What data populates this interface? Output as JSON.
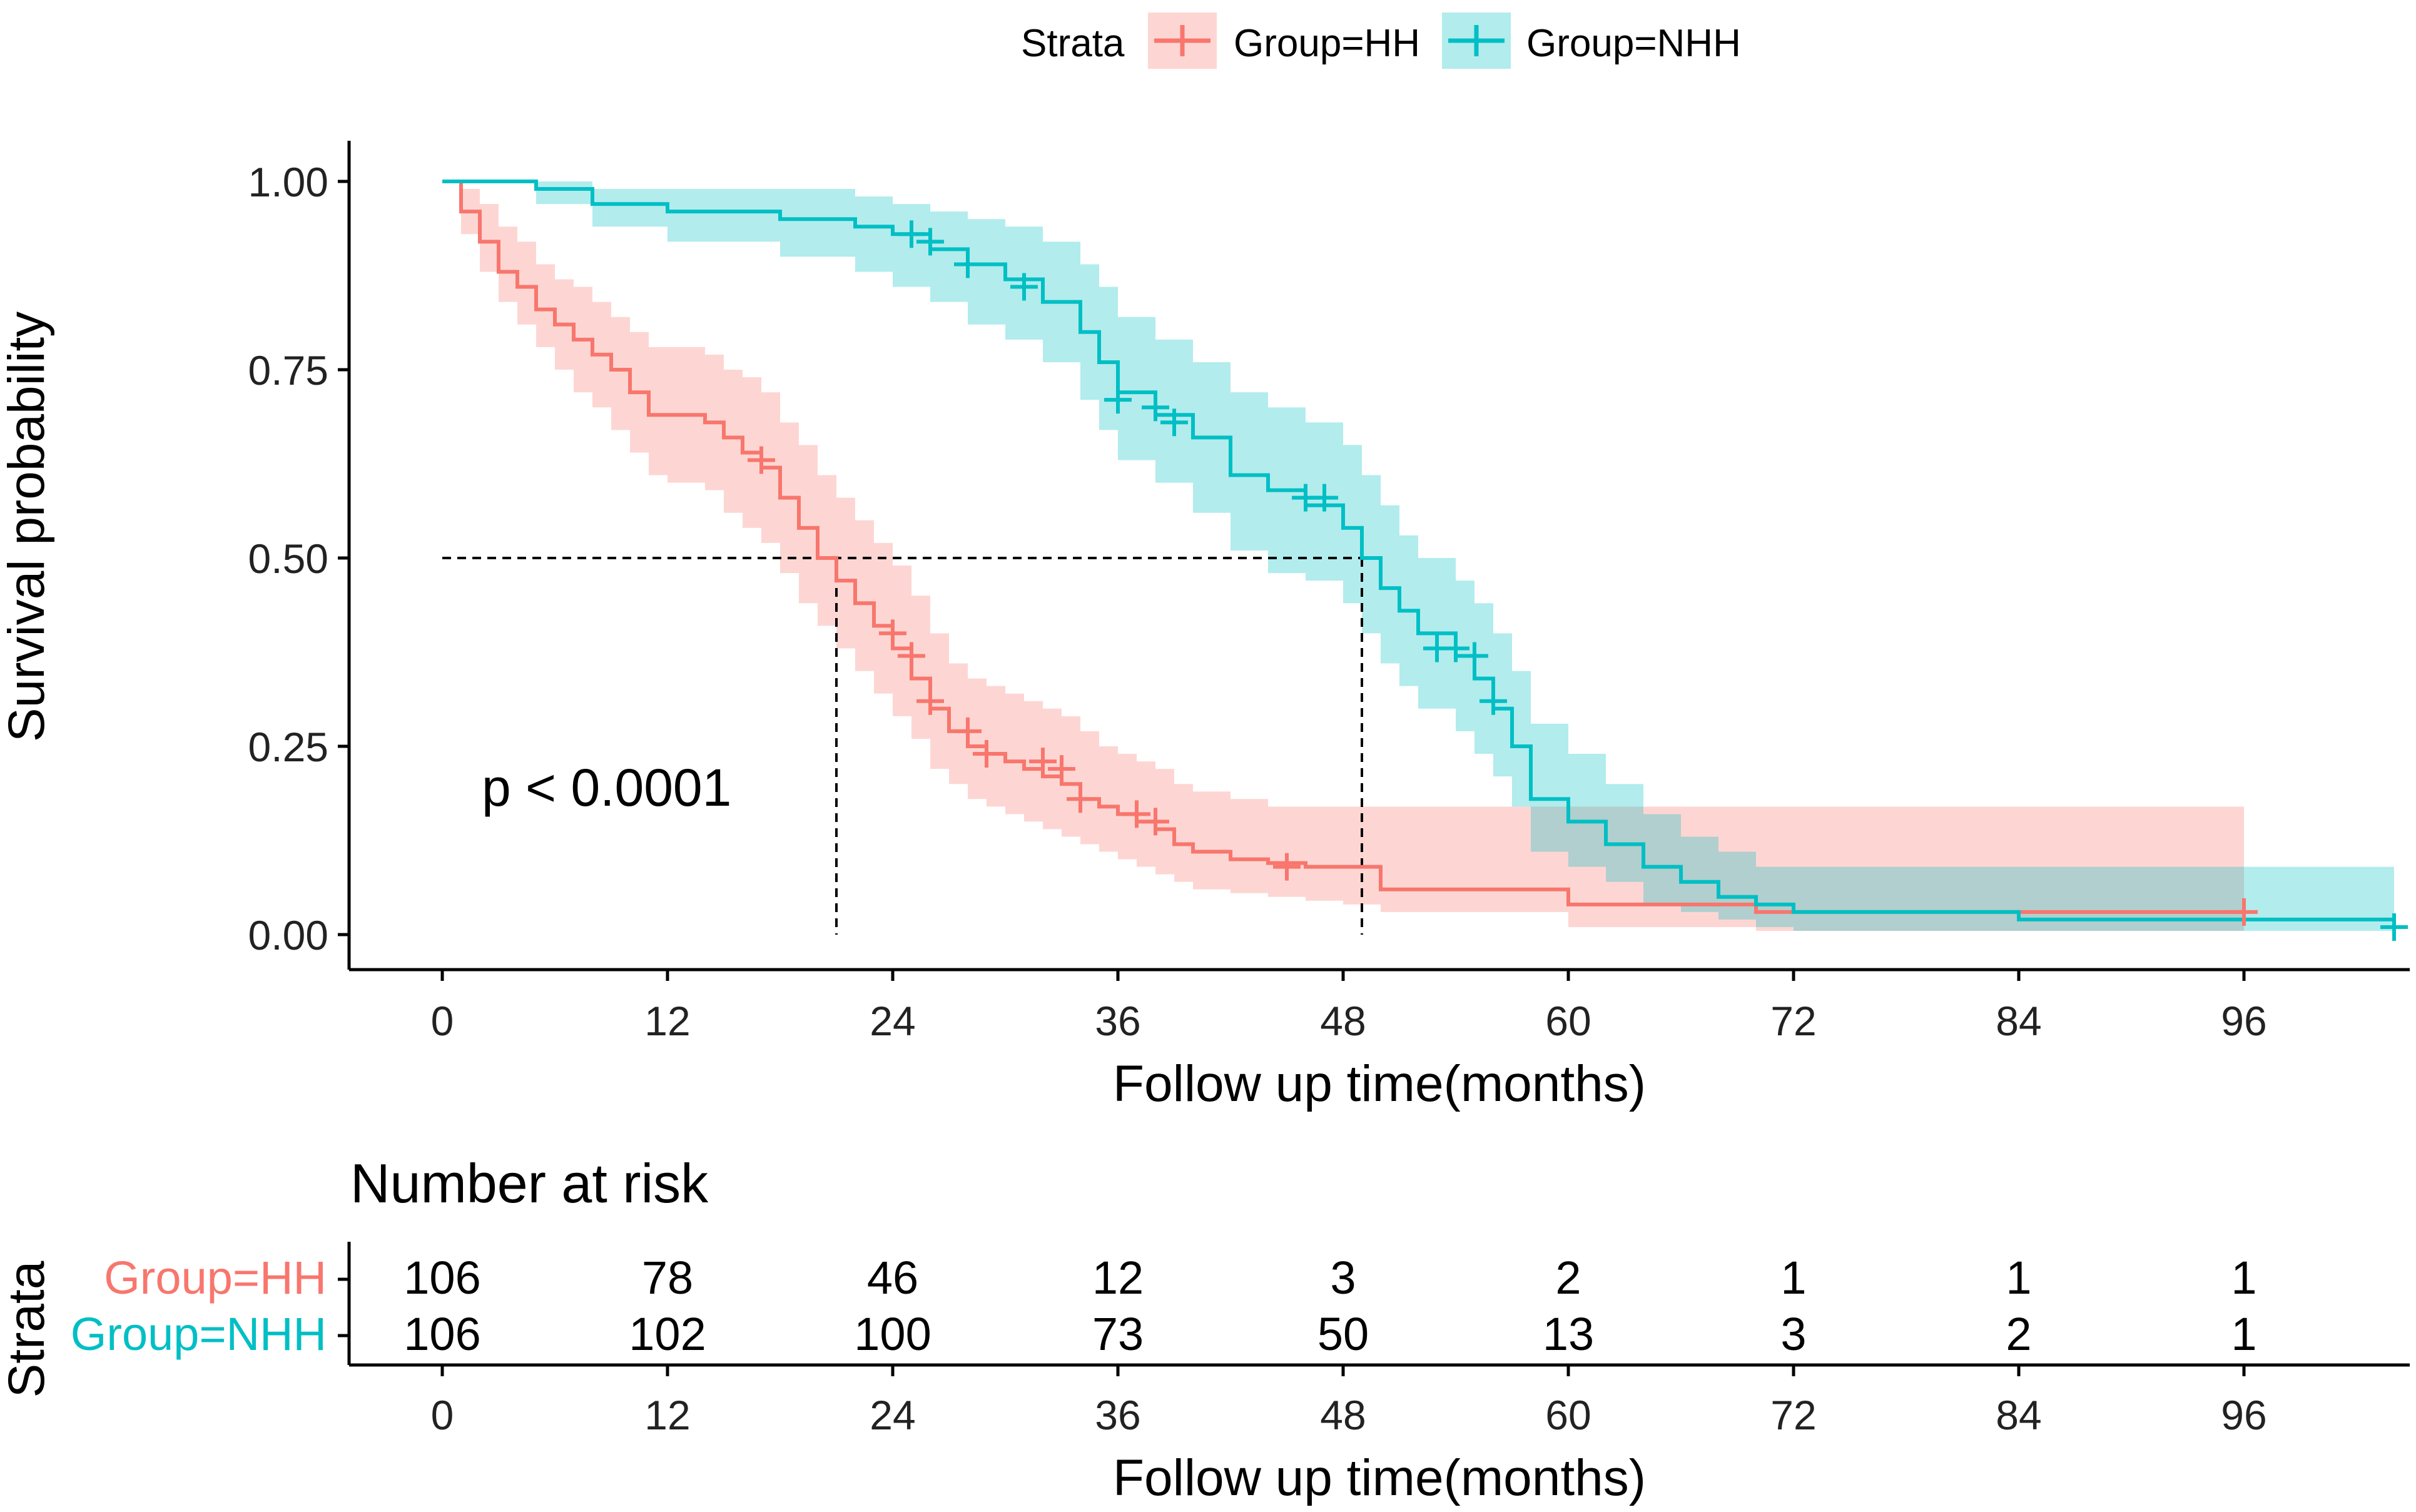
{
  "legend": {
    "title": "Strata",
    "items": [
      {
        "label": "Group=HH",
        "color": "#F8766D"
      },
      {
        "label": "Group=NHH",
        "color": "#00BFC4"
      }
    ]
  },
  "p_value": "p < 0.0001",
  "risk_table": {
    "title": "Number at risk",
    "ylabel": "Strata",
    "xlabel": "Follow up time(months)",
    "times": [
      0,
      12,
      24,
      36,
      48,
      60,
      72,
      84,
      96
    ],
    "rows": [
      {
        "label": "Group=HH",
        "color": "#F8766D",
        "values": [
          106,
          78,
          46,
          12,
          3,
          2,
          1,
          1,
          1
        ]
      },
      {
        "label": "Group=NHH",
        "color": "#00BFC4",
        "values": [
          106,
          102,
          100,
          73,
          50,
          13,
          3,
          2,
          1
        ]
      }
    ]
  },
  "chart_data": {
    "type": "line",
    "subtype": "kaplan-meier step",
    "xlabel": "Follow up time(months)",
    "ylabel": "Survival probability",
    "xlim": [
      0,
      104
    ],
    "ylim": [
      0,
      1
    ],
    "xticks": [
      0,
      12,
      24,
      36,
      48,
      60,
      72,
      84,
      96
    ],
    "yticks": [
      0,
      0.25,
      0.5,
      0.75,
      1
    ],
    "ytick_labels": [
      "0.00",
      "0.25",
      "0.50",
      "0.75",
      "1.00"
    ],
    "median_line": {
      "y": 0.5,
      "medians": [
        21,
        49
      ]
    },
    "series": [
      {
        "name": "Group=HH",
        "color": "#F8766D",
        "x": [
          0,
          1,
          2,
          3,
          4,
          5,
          6,
          7,
          8,
          9,
          10,
          11,
          12,
          13,
          14,
          15,
          16,
          17,
          18,
          19,
          20,
          21,
          22,
          23,
          24,
          25,
          26,
          27,
          28,
          29,
          30,
          31,
          32,
          33,
          34,
          35,
          36,
          37,
          38,
          39,
          40,
          42,
          44,
          46,
          48,
          50,
          55,
          60,
          70,
          80,
          96
        ],
        "y": [
          1.0,
          0.96,
          0.92,
          0.88,
          0.86,
          0.83,
          0.81,
          0.79,
          0.77,
          0.75,
          0.72,
          0.69,
          0.69,
          0.69,
          0.68,
          0.66,
          0.64,
          0.62,
          0.58,
          0.54,
          0.5,
          0.47,
          0.44,
          0.41,
          0.38,
          0.34,
          0.3,
          0.27,
          0.25,
          0.24,
          0.23,
          0.22,
          0.21,
          0.2,
          0.18,
          0.17,
          0.16,
          0.15,
          0.14,
          0.12,
          0.11,
          0.1,
          0.095,
          0.09,
          0.09,
          0.06,
          0.06,
          0.04,
          0.03,
          0.03,
          0.03
        ],
        "lower": [
          1.0,
          0.93,
          0.88,
          0.84,
          0.81,
          0.78,
          0.75,
          0.72,
          0.7,
          0.67,
          0.64,
          0.61,
          0.6,
          0.6,
          0.59,
          0.56,
          0.54,
          0.52,
          0.48,
          0.44,
          0.41,
          0.38,
          0.35,
          0.32,
          0.29,
          0.26,
          0.22,
          0.2,
          0.18,
          0.17,
          0.16,
          0.15,
          0.14,
          0.13,
          0.12,
          0.11,
          0.1,
          0.09,
          0.08,
          0.07,
          0.06,
          0.055,
          0.05,
          0.045,
          0.04,
          0.03,
          0.03,
          0.01,
          0.005,
          0.005,
          0.005
        ],
        "upper": [
          1.0,
          0.99,
          0.97,
          0.94,
          0.92,
          0.89,
          0.87,
          0.86,
          0.84,
          0.82,
          0.8,
          0.78,
          0.78,
          0.78,
          0.77,
          0.75,
          0.74,
          0.72,
          0.68,
          0.65,
          0.61,
          0.58,
          0.55,
          0.52,
          0.49,
          0.45,
          0.4,
          0.36,
          0.34,
          0.33,
          0.32,
          0.31,
          0.3,
          0.29,
          0.27,
          0.25,
          0.24,
          0.23,
          0.22,
          0.2,
          0.19,
          0.18,
          0.17,
          0.17,
          0.17,
          0.17,
          0.17,
          0.17,
          0.17,
          0.17,
          0.17
        ],
        "censored": [
          [
            17,
            0.63
          ],
          [
            24,
            0.4
          ],
          [
            25,
            0.37
          ],
          [
            26,
            0.31
          ],
          [
            28,
            0.27
          ],
          [
            29,
            0.24
          ],
          [
            32,
            0.23
          ],
          [
            33,
            0.22
          ],
          [
            34,
            0.18
          ],
          [
            37,
            0.16
          ],
          [
            38,
            0.15
          ],
          [
            45,
            0.09
          ],
          [
            96,
            0.03
          ]
        ]
      },
      {
        "name": "Group=NHH",
        "color": "#00BFC4",
        "x": [
          0,
          5,
          8,
          12,
          18,
          22,
          24,
          26,
          28,
          30,
          32,
          34,
          35,
          36,
          38,
          40,
          42,
          44,
          46,
          48,
          49,
          50,
          51,
          52,
          54,
          55,
          56,
          57,
          58,
          60,
          62,
          64,
          66,
          68,
          70,
          72,
          84,
          104
        ],
        "y": [
          1.0,
          0.99,
          0.97,
          0.96,
          0.95,
          0.94,
          0.93,
          0.91,
          0.89,
          0.87,
          0.84,
          0.8,
          0.76,
          0.72,
          0.69,
          0.66,
          0.61,
          0.59,
          0.57,
          0.54,
          0.5,
          0.46,
          0.43,
          0.4,
          0.37,
          0.34,
          0.3,
          0.25,
          0.18,
          0.15,
          0.12,
          0.09,
          0.07,
          0.05,
          0.04,
          0.03,
          0.02,
          0.01
        ],
        "lower": [
          1.0,
          0.97,
          0.94,
          0.92,
          0.9,
          0.88,
          0.86,
          0.84,
          0.81,
          0.79,
          0.76,
          0.71,
          0.67,
          0.63,
          0.6,
          0.56,
          0.51,
          0.48,
          0.47,
          0.44,
          0.4,
          0.36,
          0.33,
          0.3,
          0.27,
          0.24,
          0.21,
          0.17,
          0.11,
          0.09,
          0.07,
          0.04,
          0.03,
          0.02,
          0.01,
          0.005,
          0.005,
          0.005
        ],
        "upper": [
          1.0,
          1.0,
          0.99,
          0.99,
          0.99,
          0.98,
          0.97,
          0.96,
          0.95,
          0.94,
          0.92,
          0.89,
          0.86,
          0.82,
          0.79,
          0.76,
          0.72,
          0.7,
          0.68,
          0.65,
          0.61,
          0.57,
          0.53,
          0.5,
          0.47,
          0.44,
          0.4,
          0.35,
          0.28,
          0.24,
          0.2,
          0.16,
          0.13,
          0.11,
          0.09,
          0.09,
          0.09,
          0.09
        ],
        "censored": [
          [
            25,
            0.93
          ],
          [
            26,
            0.92
          ],
          [
            28,
            0.89
          ],
          [
            31,
            0.86
          ],
          [
            36,
            0.71
          ],
          [
            38,
            0.7
          ],
          [
            39,
            0.68
          ],
          [
            46,
            0.58
          ],
          [
            47,
            0.58
          ],
          [
            53,
            0.38
          ],
          [
            54,
            0.38
          ],
          [
            55,
            0.37
          ],
          [
            56,
            0.31
          ],
          [
            104,
            0.01
          ]
        ]
      }
    ]
  }
}
